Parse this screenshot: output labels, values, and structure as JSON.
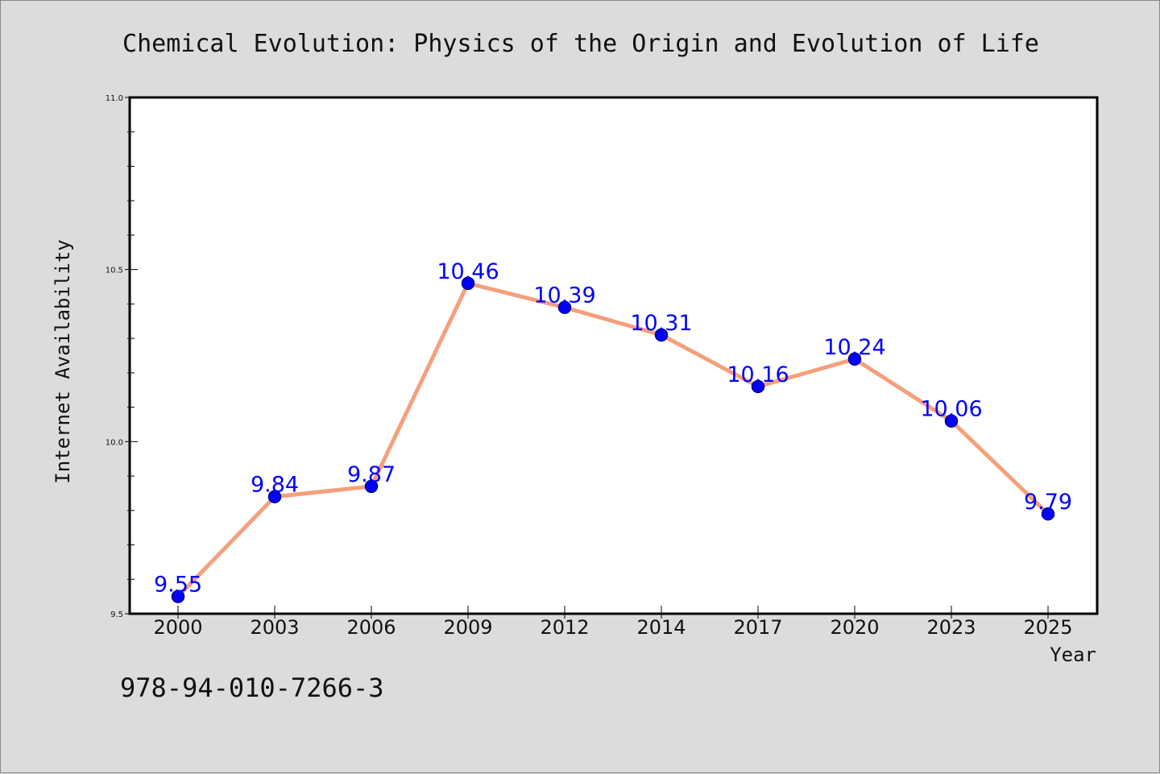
{
  "chart_data": {
    "type": "line",
    "title": "Chemical Evolution: Physics of the Origin and Evolution of Life",
    "xlabel": "Year",
    "ylabel": "Internet Availability",
    "categories": [
      "2000",
      "2003",
      "2006",
      "2009",
      "2012",
      "2014",
      "2017",
      "2020",
      "2023",
      "2025"
    ],
    "series": [
      {
        "values": [
          9.55,
          9.84,
          9.87,
          10.46,
          10.39,
          10.31,
          10.16,
          10.24,
          10.06,
          9.79
        ]
      }
    ],
    "data_labels": [
      "9.55",
      "9.84",
      "9.87",
      "10.46",
      "10.39",
      "10.31",
      "10.16",
      "10.24",
      "10.06",
      "9.79"
    ],
    "ylim": [
      9.5,
      11.0
    ],
    "yticks": [
      "9.5",
      "10.0",
      "10.5",
      "11.0"
    ],
    "grid": false,
    "colors": {
      "line": "#f4a07c",
      "marker": "#0000ff",
      "marker_edge": "#00008b",
      "data_label": "#0000ff",
      "background": "#dcdcdc",
      "plot_background": "#ffffff"
    }
  },
  "footer": {
    "isbn": "978-94-010-7266-3"
  }
}
